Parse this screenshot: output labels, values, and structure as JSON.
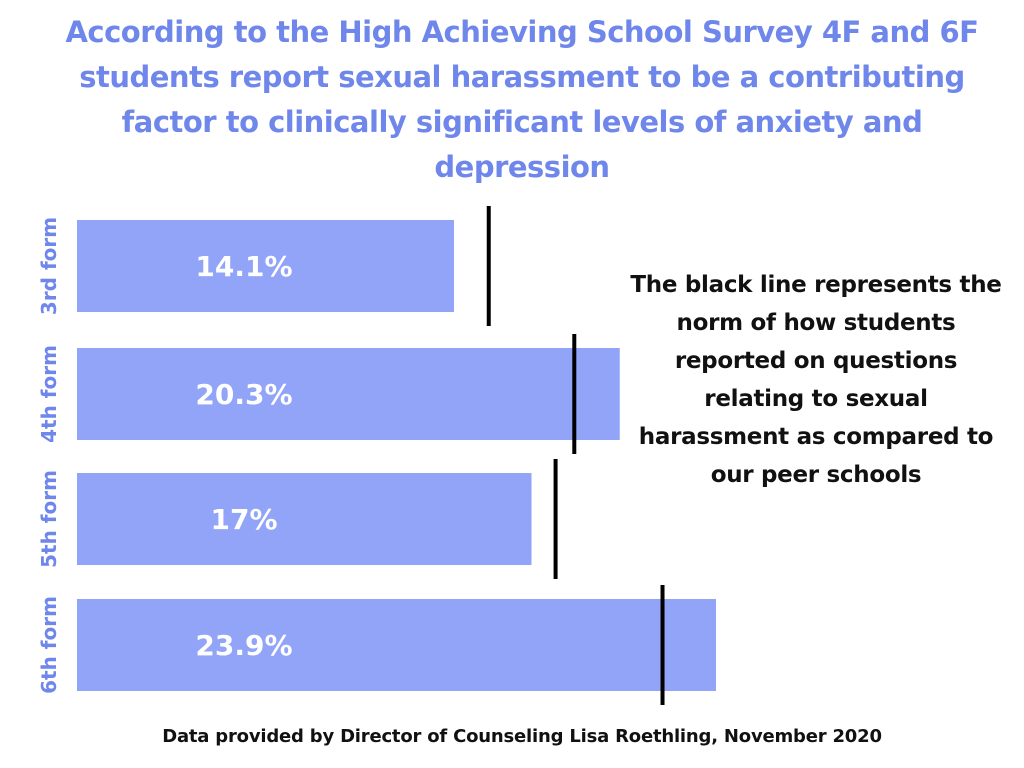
{
  "title": "According to the High Achieving School Survey 4F and 6F students report sexual harassment to be a contributing factor to clinically significant levels of anxiety and depression",
  "annotation": "The black line represents the norm of how students reported on questions relating to sexual harassment as compared to our peer schools",
  "source": "Data provided by Director of Counseling Lisa Roethling, November 2020",
  "colors": {
    "bar": "#91a4f8",
    "title": "#6f86ea",
    "norm_line": "#000000",
    "text": "#111111"
  },
  "chart_data": {
    "type": "bar",
    "orientation": "horizontal",
    "categories": [
      "3rd form",
      "4th form",
      "5th form",
      "6th form"
    ],
    "values": [
      14.1,
      20.3,
      17,
      23.9
    ],
    "value_labels": [
      "14.1%",
      "20.3%",
      "17%",
      "23.9%"
    ],
    "norm_values": [
      15.4,
      18.6,
      17.9,
      21.9
    ],
    "unit": "%",
    "title": "According to the High Achieving School Survey 4F and 6F students report sexual harassment to be a contributing factor to clinically significant levels of anxiety and depression",
    "xlabel": "",
    "ylabel": "",
    "xlim": [
      0,
      23.9
    ],
    "grid": false,
    "legend": "none"
  }
}
